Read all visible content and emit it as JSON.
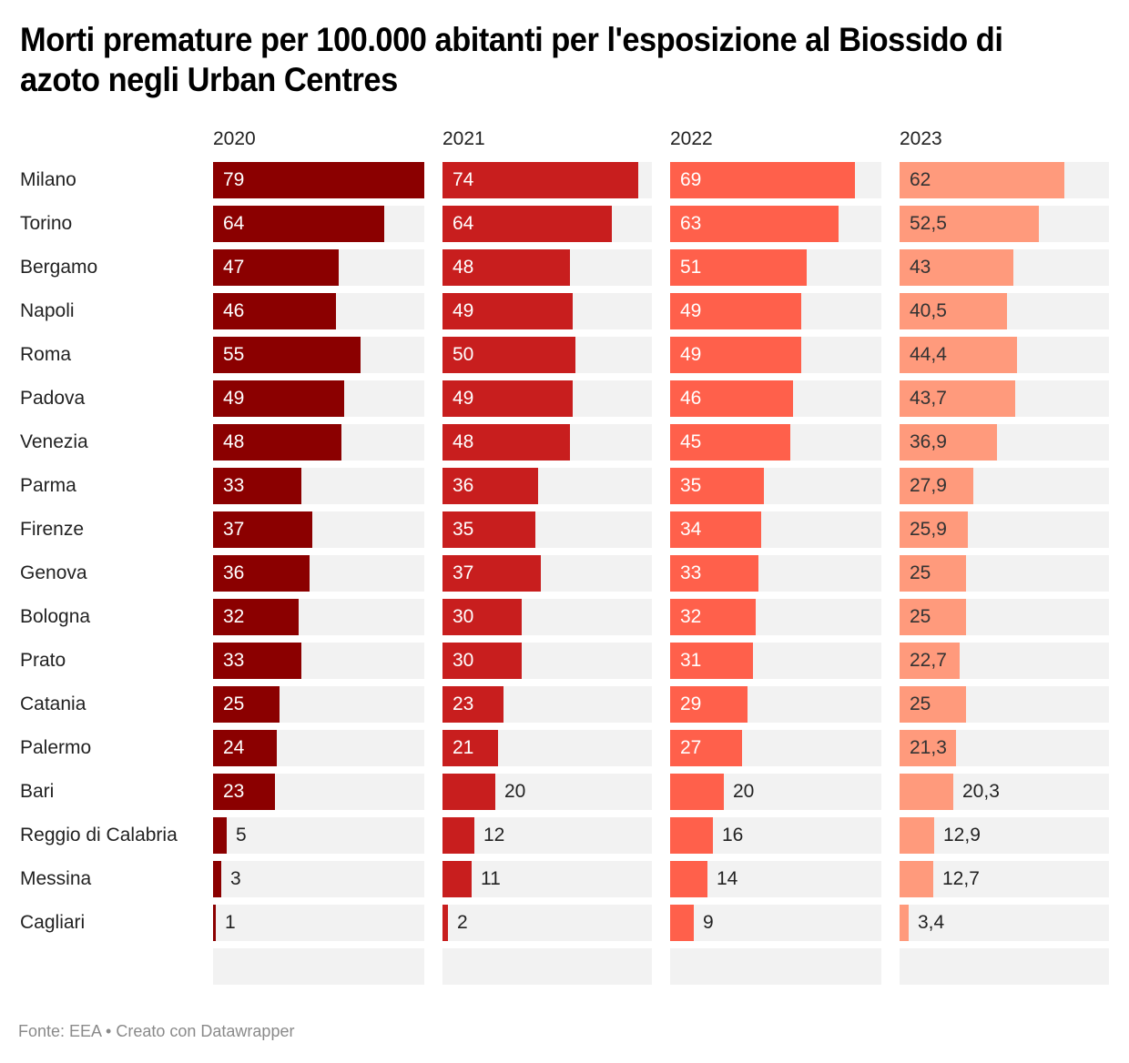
{
  "title": "Morti premature per 100.000 abitanti per l'esposizione al Biossido di azoto negli Urban Centres",
  "footer": "Fonte: EEA • Creato con Datawrapper",
  "chart_data": {
    "type": "bar",
    "orientation": "horizontal",
    "layout": "small-multiples",
    "title": "Morti premature per 100.000 abitanti per l'esposizione al Biossido di azoto negli Urban Centres",
    "xlabel": "",
    "ylabel": "",
    "xlim": [
      0,
      79
    ],
    "grid": false,
    "legend": "none",
    "categories": [
      "Milano",
      "Torino",
      "Bergamo",
      "Napoli",
      "Roma",
      "Padova",
      "Venezia",
      "Parma",
      "Firenze",
      "Genova",
      "Bologna",
      "Prato",
      "Catania",
      "Palermo",
      "Bari",
      "Reggio di Calabria",
      "Messina",
      "Cagliari"
    ],
    "series": [
      {
        "name": "2020",
        "color": "#8b0000",
        "label_color_inside": "#ffffff",
        "values": [
          79,
          64,
          47,
          46,
          55,
          49,
          48,
          33,
          37,
          36,
          32,
          33,
          25,
          24,
          23,
          5,
          3,
          1
        ],
        "labels": [
          "79",
          "64",
          "47",
          "46",
          "55",
          "49",
          "48",
          "33",
          "37",
          "36",
          "32",
          "33",
          "25",
          "24",
          "23",
          "5",
          "3",
          "1"
        ]
      },
      {
        "name": "2021",
        "color": "#c81e1e",
        "label_color_inside": "#ffffff",
        "values": [
          74,
          64,
          48,
          49,
          50,
          49,
          48,
          36,
          35,
          37,
          30,
          30,
          23,
          21,
          20,
          12,
          11,
          2
        ],
        "labels": [
          "74",
          "64",
          "48",
          "49",
          "50",
          "49",
          "48",
          "36",
          "35",
          "37",
          "30",
          "30",
          "23",
          "21",
          "20",
          "12",
          "11",
          "2"
        ]
      },
      {
        "name": "2022",
        "color": "#ff604b",
        "label_color_inside": "#ffffff",
        "values": [
          69,
          63,
          51,
          49,
          49,
          46,
          45,
          35,
          34,
          33,
          32,
          31,
          29,
          27,
          20,
          16,
          14,
          9
        ],
        "labels": [
          "69",
          "63",
          "51",
          "49",
          "49",
          "46",
          "45",
          "35",
          "34",
          "33",
          "32",
          "31",
          "29",
          "27",
          "20",
          "16",
          "14",
          "9"
        ]
      },
      {
        "name": "2023",
        "color": "#ff9a7c",
        "label_color_inside": "#333333",
        "values": [
          62,
          52.5,
          43,
          40.5,
          44.4,
          43.7,
          36.9,
          27.9,
          25.9,
          25,
          25,
          22.7,
          25,
          21.3,
          20.3,
          12.9,
          12.7,
          3.4
        ],
        "labels": [
          "62",
          "52,5",
          "43",
          "40,5",
          "44,4",
          "43,7",
          "36,9",
          "27,9",
          "25,9",
          "25",
          "25",
          "22,7",
          "25",
          "21,3",
          "20,3",
          "12,9",
          "12,7",
          "3,4"
        ]
      }
    ]
  }
}
